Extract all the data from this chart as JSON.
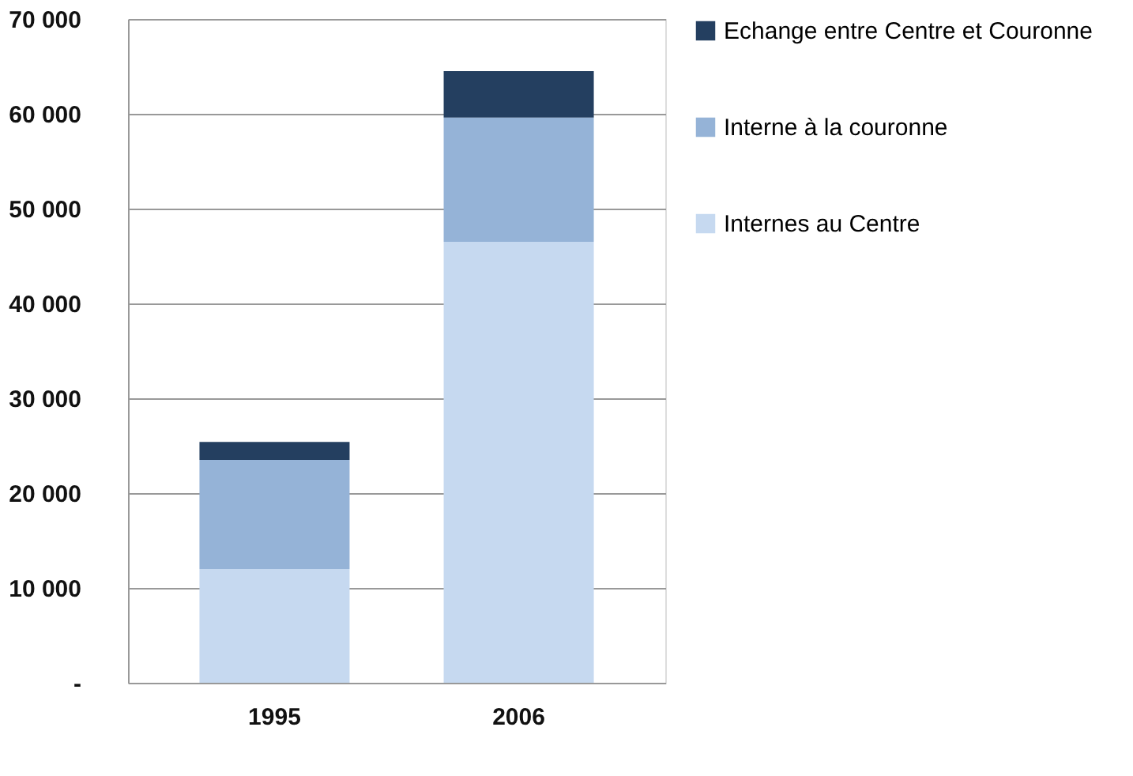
{
  "chart_data": {
    "type": "bar",
    "stacked": true,
    "categories": [
      "1995",
      "2006"
    ],
    "series": [
      {
        "name": "Internes au Centre",
        "color": "#c6d9f0",
        "values": [
          12000,
          46500
        ]
      },
      {
        "name": "Interne à la couronne",
        "color": "#95b3d7",
        "values": [
          11500,
          13100
        ]
      },
      {
        "name": "Echange entre Centre et Couronne",
        "color": "#243f60",
        "values": [
          1900,
          4900
        ]
      }
    ],
    "ylim": [
      0,
      70000
    ],
    "yticks": [
      {
        "value": 0,
        "label": "-"
      },
      {
        "value": 10000,
        "label": "10 000"
      },
      {
        "value": 20000,
        "label": "20 000"
      },
      {
        "value": 30000,
        "label": "30 000"
      },
      {
        "value": 40000,
        "label": "40 000"
      },
      {
        "value": 50000,
        "label": "50 000"
      },
      {
        "value": 60000,
        "label": "60 000"
      },
      {
        "value": 70000,
        "label": "70 000"
      }
    ],
    "grid": "y",
    "legend": "right"
  }
}
